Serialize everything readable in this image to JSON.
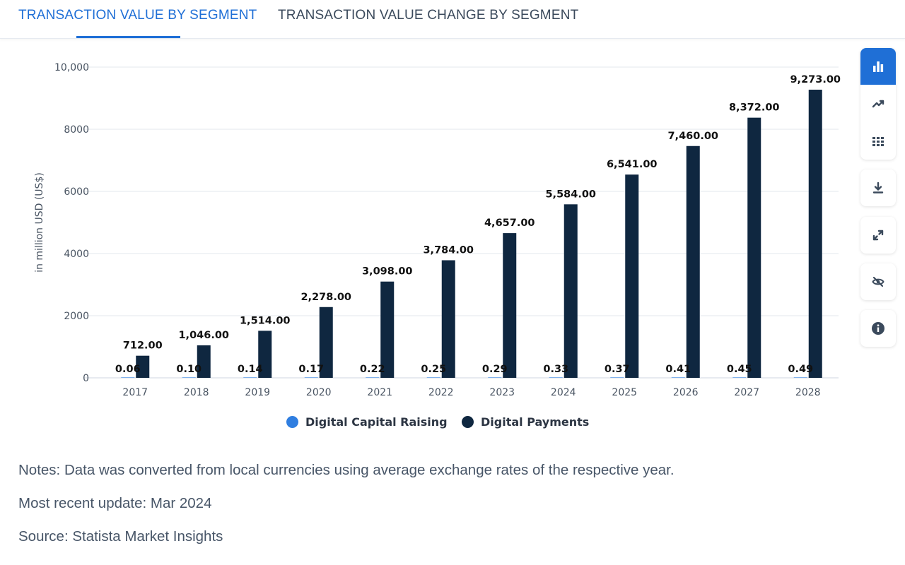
{
  "tabs": [
    {
      "label": "TRANSACTION VALUE BY SEGMENT",
      "active": true
    },
    {
      "label": "TRANSACTION VALUE CHANGE BY SEGMENT",
      "active": false
    }
  ],
  "chart_data": {
    "type": "bar",
    "title": "",
    "xlabel": "",
    "ylabel": "in million USD (US$)",
    "ylim": [
      0,
      10000
    ],
    "yticks": [
      "0",
      "2000",
      "4000",
      "6000",
      "8000",
      "10,000"
    ],
    "ytick_values": [
      0,
      2000,
      4000,
      6000,
      8000,
      10000
    ],
    "categories": [
      "2017",
      "2018",
      "2019",
      "2020",
      "2021",
      "2022",
      "2023",
      "2024",
      "2025",
      "2026",
      "2027",
      "2028"
    ],
    "series": [
      {
        "name": "Digital Capital Raising",
        "color": "#2f7ee0",
        "values": [
          0.06,
          0.1,
          0.14,
          0.17,
          0.22,
          0.25,
          0.29,
          0.33,
          0.37,
          0.41,
          0.45,
          0.49
        ],
        "labels": [
          "0.06",
          "0.10",
          "0.14",
          "0.17",
          "0.22",
          "0.25",
          "0.29",
          "0.33",
          "0.37",
          "0.41",
          "0.45",
          "0.49"
        ]
      },
      {
        "name": "Digital Payments",
        "color": "#0f2740",
        "values": [
          712,
          1046,
          1514,
          2278,
          3098,
          3784,
          4657,
          5584,
          6541,
          7460,
          8372,
          9273
        ],
        "labels": [
          "712.00",
          "1,046.00",
          "1,514.00",
          "2,278.00",
          "3,098.00",
          "3,784.00",
          "4,657.00",
          "5,584.00",
          "6,541.00",
          "7,460.00",
          "8,372.00",
          "9,273.00"
        ]
      }
    ],
    "grid": true,
    "legend_position": "bottom-center"
  },
  "legend": [
    {
      "label": "Digital Capital Raising",
      "color": "#2f7ee0"
    },
    {
      "label": "Digital Payments",
      "color": "#0f2740"
    }
  ],
  "notes": {
    "note": "Notes: Data was converted from local currencies using average exchange rates of the respective year.",
    "update": "Most recent update: Mar 2024",
    "source": "Source: Statista Market Insights"
  },
  "toolbar": {
    "accent": "#1f6fd6",
    "icon_color": "#3b4a5c",
    "icons": [
      "bar-chart-icon",
      "line-chart-icon",
      "table-icon",
      "download-icon",
      "expand-icon",
      "hide-icon",
      "info-icon"
    ]
  }
}
